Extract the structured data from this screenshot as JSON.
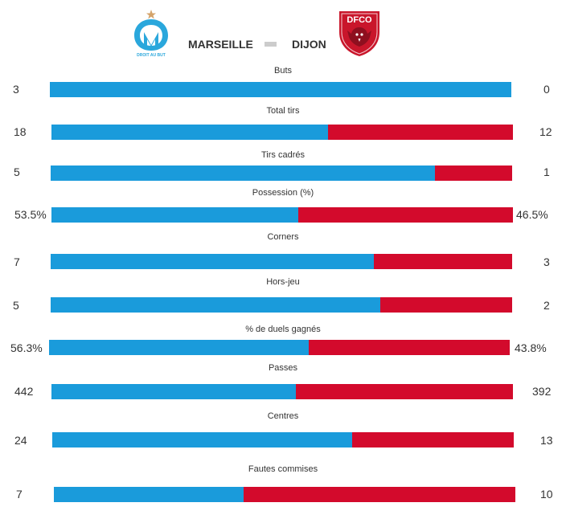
{
  "colors": {
    "home": "#1a9bdb",
    "away": "#d30a2c",
    "separator": "#cccccc"
  },
  "header": {
    "home_team": "MARSEILLE",
    "away_team": "DIJON",
    "home_logo_icon": "om-logo-icon",
    "home_logo_text": "DROIT AU BUT",
    "away_logo_icon": "dfco-logo-icon",
    "away_logo_text": "DFCO"
  },
  "stats": [
    {
      "label": "Buts",
      "home": "3",
      "away": "0",
      "home_share": 1.0
    },
    {
      "label": "Total tirs",
      "home": "18",
      "away": "12",
      "home_share": 0.6
    },
    {
      "label": "Tirs cadrés",
      "home": "5",
      "away": "1",
      "home_share": 0.833
    },
    {
      "label": "Possession (%)",
      "home": "53.5%",
      "away": "46.5%",
      "home_share": 0.535
    },
    {
      "label": "Corners",
      "home": "7",
      "away": "3",
      "home_share": 0.7
    },
    {
      "label": "Hors-jeu",
      "home": "5",
      "away": "2",
      "home_share": 0.714
    },
    {
      "label": "% de duels gagnés",
      "home": "56.3%",
      "away": "43.8%",
      "home_share": 0.563
    },
    {
      "label": "Passes",
      "home": "442",
      "away": "392",
      "home_share": 0.53
    },
    {
      "label": "Centres",
      "home": "24",
      "away": "13",
      "home_share": 0.649
    },
    {
      "label": "Fautes commises",
      "home": "7",
      "away": "10",
      "home_share": 0.412
    }
  ]
}
